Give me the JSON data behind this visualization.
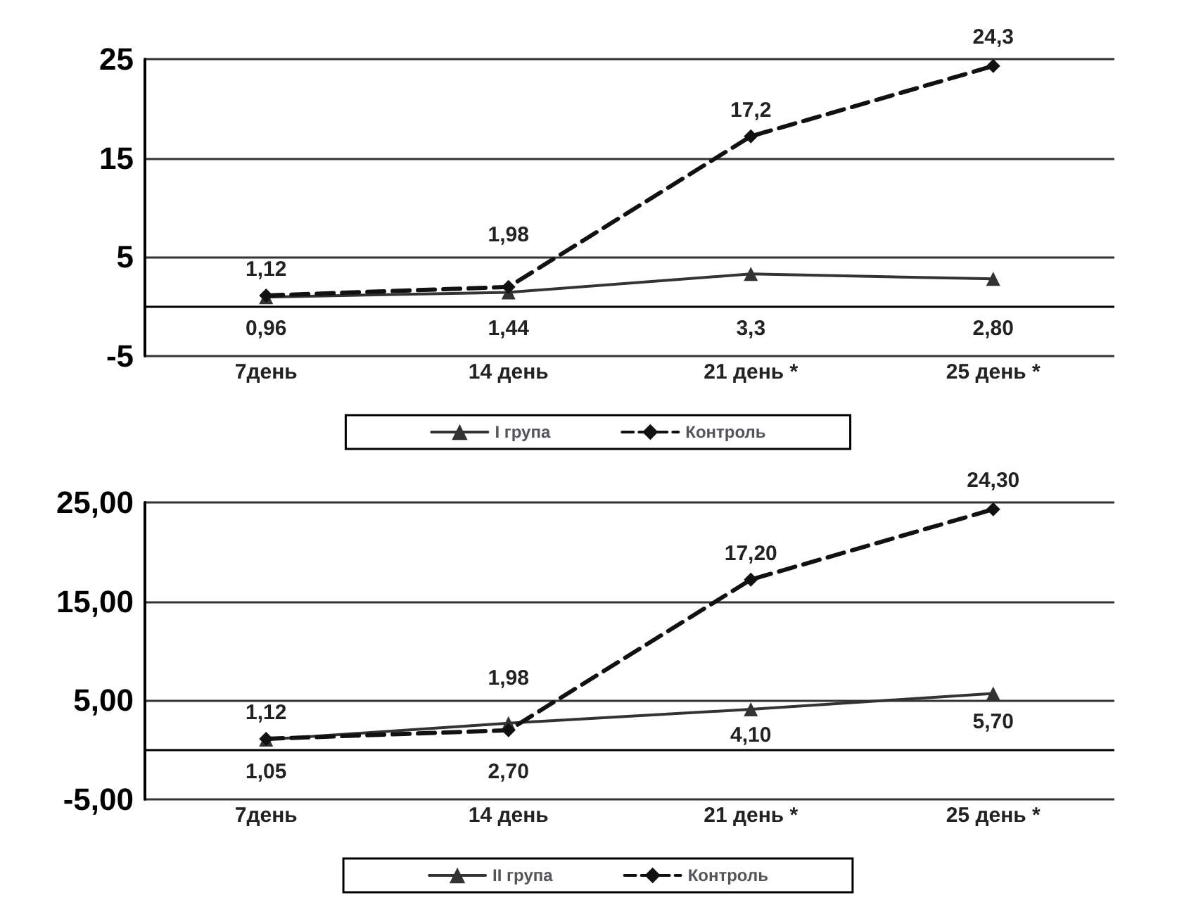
{
  "chart_data": [
    {
      "type": "line",
      "categories": [
        "7день",
        "14 день",
        "21 день *",
        "25 день *"
      ],
      "series": [
        {
          "name": "I група",
          "color": "#333333",
          "marker": "triangle",
          "line_style": "solid",
          "values": [
            0.96,
            1.44,
            3.3,
            2.8
          ],
          "value_labels": [
            "0,96",
            "1,44",
            "3,3",
            "2,80"
          ]
        },
        {
          "name": "Контроль",
          "color": "#111111",
          "marker": "diamond",
          "line_style": "dashed",
          "values": [
            1.12,
            1.98,
            17.2,
            24.3
          ],
          "value_labels": [
            "1,12",
            "1,98",
            "17,2",
            "24,3"
          ]
        }
      ],
      "ylim": [
        -5,
        25
      ],
      "yticks": [
        -5,
        5,
        15,
        25
      ],
      "grid": "y",
      "legend": "bottom",
      "ref_lines": [
        {
          "axis": "y",
          "value": 0,
          "color": "#000000"
        }
      ]
    },
    {
      "type": "line",
      "categories": [
        "7день",
        "14 день",
        "21 день *",
        "25 день *"
      ],
      "series": [
        {
          "name": "II група",
          "color": "#333333",
          "marker": "triangle",
          "line_style": "solid",
          "values": [
            1.05,
            2.7,
            4.1,
            5.7
          ],
          "value_labels": [
            "1,05",
            "2,70",
            "4,10",
            "5,70"
          ]
        },
        {
          "name": "Контроль",
          "color": "#111111",
          "marker": "diamond",
          "line_style": "dashed",
          "values": [
            1.12,
            1.98,
            17.2,
            24.3
          ],
          "value_labels": [
            "1,12",
            "1,98",
            "17,20",
            "24,30"
          ]
        }
      ],
      "ylim": [
        -5,
        25
      ],
      "yticks": [
        {
          "value": -5,
          "label": "-5,00"
        },
        {
          "value": 5,
          "label": "5,00"
        },
        {
          "value": 15,
          "label": "15,00"
        },
        {
          "value": 25,
          "label": "25,00"
        }
      ],
      "grid": "y",
      "legend": "bottom",
      "ref_lines": [
        {
          "axis": "y",
          "value": 0,
          "color": "#000000"
        }
      ]
    }
  ]
}
